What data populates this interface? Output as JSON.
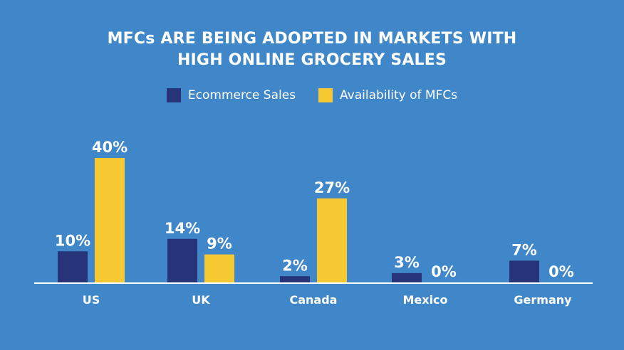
{
  "title_lines": [
    "MFCs ARE BEING ADOPTED IN MARKETS WITH",
    "HIGH ONLINE GROCERY SALES"
  ],
  "colors": {
    "background": "#3f87c9",
    "ecommerce": "#283479",
    "mfc": "#f6c832",
    "axis": "#ffffff",
    "text": "#ffffff"
  },
  "chart_data": {
    "type": "bar",
    "title": "MFCs ARE BEING ADOPTED IN MARKETS WITH HIGH ONLINE GROCERY SALES",
    "categories": [
      "US",
      "UK",
      "Canada",
      "Mexico",
      "Germany"
    ],
    "series": [
      {
        "name": "Ecommerce Sales",
        "values": [
          10,
          14,
          2,
          3,
          7
        ],
        "labels": [
          "10%",
          "14%",
          "2%",
          "3%",
          "7%"
        ],
        "color": "#283479"
      },
      {
        "name": "Availability of MFCs",
        "values": [
          40,
          9,
          27,
          0,
          0
        ],
        "labels": [
          "40%",
          "9%",
          "27%",
          "0%",
          "0%"
        ],
        "color": "#f6c832"
      }
    ],
    "xlabel": "",
    "ylabel": "",
    "ylim": [
      0,
      40
    ],
    "grid": false,
    "legend": "top-center"
  }
}
